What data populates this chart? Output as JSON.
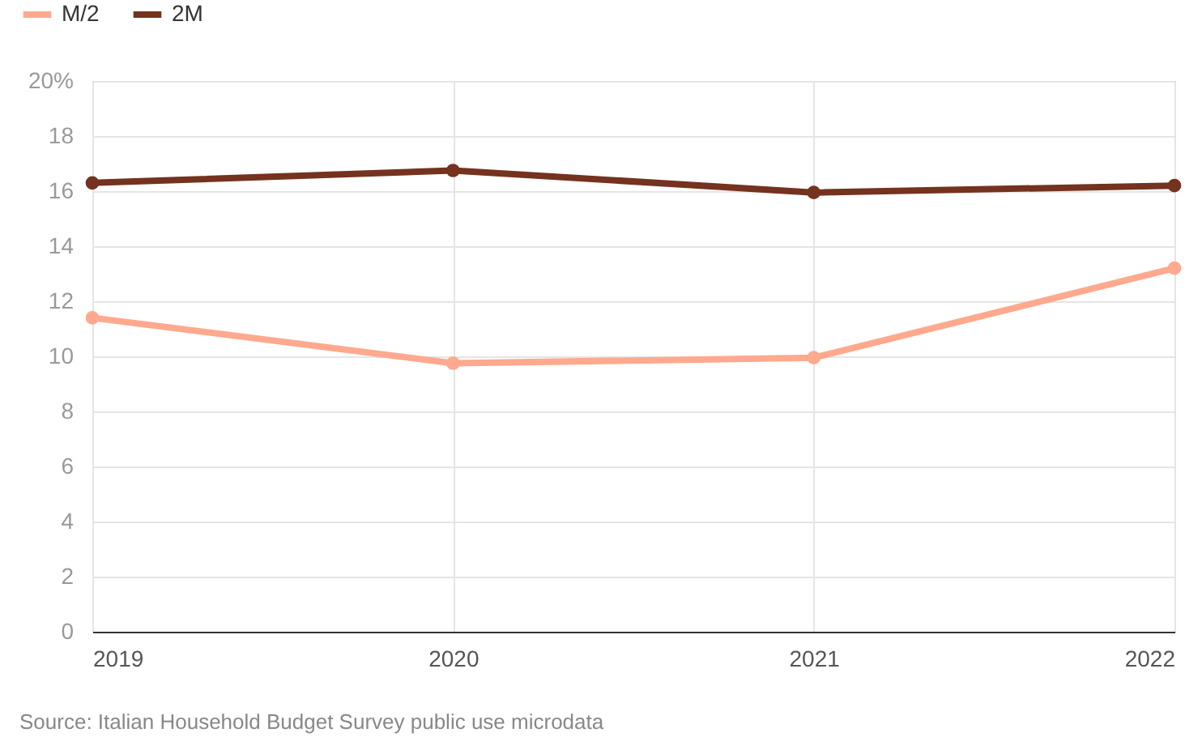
{
  "chart_data": {
    "type": "line",
    "x": [
      2019,
      2020,
      2021,
      2022
    ],
    "series": [
      {
        "name": "M/2",
        "color": "#ffa98e",
        "values": [
          11.4,
          9.75,
          9.95,
          13.2
        ]
      },
      {
        "name": "2M",
        "color": "#74321f",
        "values": [
          16.3,
          16.75,
          15.95,
          16.2
        ]
      }
    ],
    "xlim": [
      2019,
      2022
    ],
    "xticks": [
      2019,
      2020,
      2021,
      2022
    ],
    "ylim": [
      0,
      20
    ],
    "yticks": [
      0,
      2,
      4,
      6,
      8,
      10,
      12,
      14,
      16,
      18,
      {
        "value": 20,
        "label": "20%"
      }
    ],
    "grid": true,
    "legend": "top left",
    "marker": "circle",
    "line_style": "solid",
    "annotations": [
      "Source: Italian Household Budget Survey public use microdata"
    ]
  }
}
